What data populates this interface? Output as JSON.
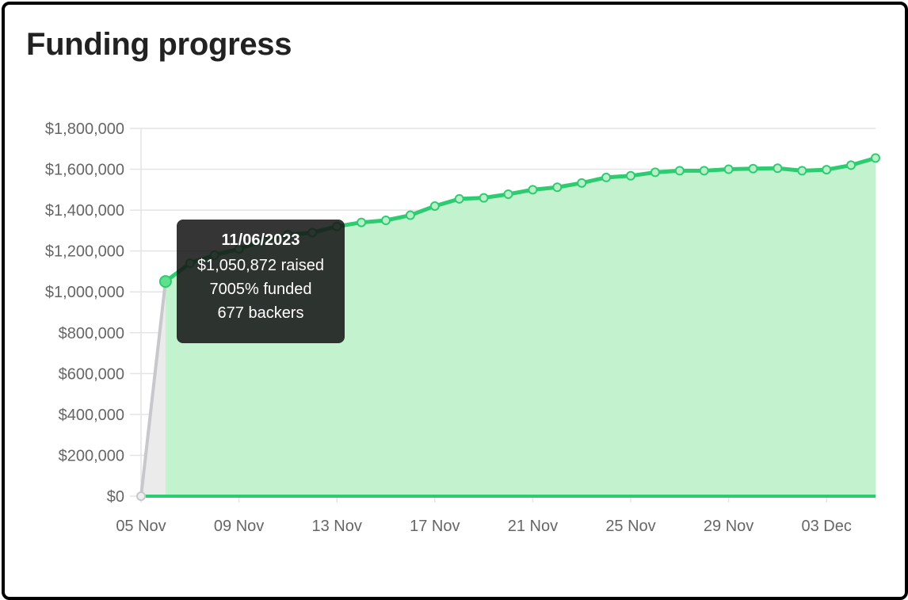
{
  "header": {
    "title": "Funding progress"
  },
  "tooltip": {
    "date": "11/06/2023",
    "raised": "$1,050,872 raised",
    "funded": "7005% funded",
    "backers": "677 backers"
  },
  "colors": {
    "line": "#2ecc71",
    "fill": "#c3f2cf",
    "prelaunch_line": "#c7c7cc",
    "prelaunch_fill": "#ebebeb",
    "grid": "#e4e4e4"
  },
  "chart_data": {
    "type": "area",
    "title": "Funding progress",
    "xlabel": "",
    "ylabel": "",
    "ylim": [
      0,
      1800000
    ],
    "grid": true,
    "legend": "none",
    "y_ticks": [
      "$0",
      "$200,000",
      "$400,000",
      "$600,000",
      "$800,000",
      "$1,000,000",
      "$1,200,000",
      "$1,400,000",
      "$1,600,000",
      "$1,800,000"
    ],
    "x_ticks": [
      "05 Nov",
      "09 Nov",
      "13 Nov",
      "17 Nov",
      "21 Nov",
      "25 Nov",
      "29 Nov",
      "03 Dec"
    ],
    "x": [
      "05 Nov",
      "06 Nov",
      "07 Nov",
      "08 Nov",
      "09 Nov",
      "10 Nov",
      "11 Nov",
      "12 Nov",
      "13 Nov",
      "14 Nov",
      "15 Nov",
      "16 Nov",
      "17 Nov",
      "18 Nov",
      "19 Nov",
      "20 Nov",
      "21 Nov",
      "22 Nov",
      "23 Nov",
      "24 Nov",
      "25 Nov",
      "26 Nov",
      "27 Nov",
      "28 Nov",
      "29 Nov",
      "30 Nov",
      "01 Dec",
      "02 Dec",
      "03 Dec",
      "04 Dec",
      "05 Dec"
    ],
    "series": [
      {
        "values": [
          0,
          1050872,
          1140000,
          1180000,
          1210000,
          1250000,
          1280000,
          1290000,
          1320000,
          1340000,
          1350000,
          1375000,
          1420000,
          1455000,
          1460000,
          1478000,
          1500000,
          1512000,
          1533000,
          1560000,
          1568000,
          1585000,
          1593000,
          1593000,
          1600000,
          1603000,
          1605000,
          1593000,
          1598000,
          1620000,
          1655000
        ]
      }
    ],
    "highlighted_point": "06 Nov"
  }
}
